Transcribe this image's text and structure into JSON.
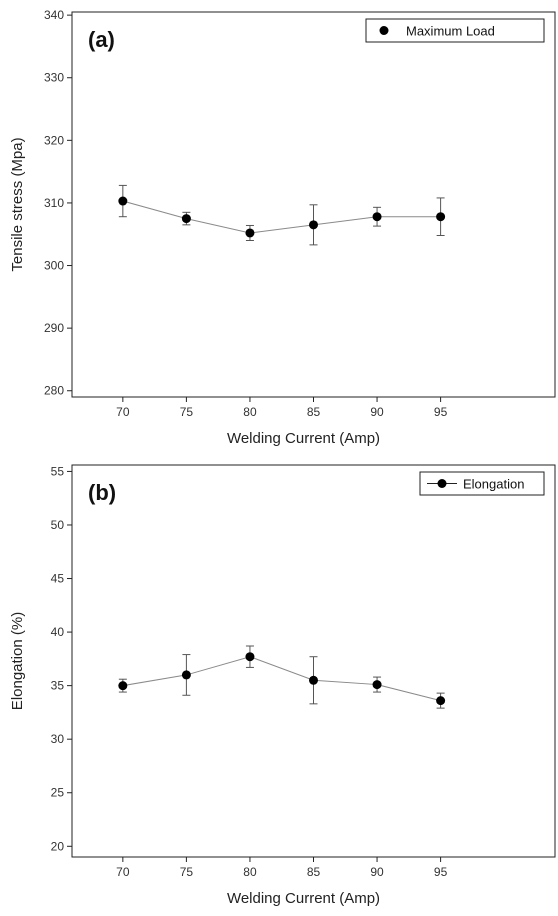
{
  "chart_data": [
    {
      "type": "line",
      "panel_label": "(a)",
      "x": [
        70,
        75,
        80,
        85,
        90,
        95
      ],
      "series": [
        {
          "name": "Maximum Load",
          "values": [
            310.3,
            307.5,
            305.2,
            306.5,
            307.8,
            307.8
          ],
          "errors": [
            2.5,
            1.0,
            1.2,
            3.2,
            1.5,
            3.0
          ]
        }
      ],
      "xlabel": "Welding Current (Amp)",
      "ylabel": "Tensile stress (Mpa)",
      "xlim": [
        66,
        104
      ],
      "ylim": [
        279,
        340.5
      ],
      "xticks": [
        70,
        75,
        80,
        85,
        90,
        95
      ],
      "yticks": [
        280,
        290,
        300,
        310,
        320,
        330,
        340
      ],
      "legend": "top-right",
      "legend_style": "marker",
      "grid": false
    },
    {
      "type": "line",
      "panel_label": "(b)",
      "x": [
        70,
        75,
        80,
        85,
        90,
        95
      ],
      "series": [
        {
          "name": "Elongation",
          "values": [
            35.0,
            36.0,
            37.7,
            35.5,
            35.1,
            33.6
          ],
          "errors": [
            0.6,
            1.9,
            1.0,
            2.2,
            0.7,
            0.7
          ]
        }
      ],
      "xlabel": "Welding Current (Amp)",
      "ylabel": "Elongation (%)",
      "xlim": [
        66,
        104
      ],
      "ylim": [
        19,
        55.6
      ],
      "xticks": [
        70,
        75,
        80,
        85,
        90,
        95
      ],
      "yticks": [
        20,
        25,
        30,
        35,
        40,
        45,
        50,
        55
      ],
      "legend": "top-right",
      "legend_style": "line-marker",
      "grid": false
    }
  ],
  "colors": {
    "marker": "#000000",
    "line": "#8a8a8a",
    "axis": "#222222",
    "error_bar": "#555555"
  }
}
